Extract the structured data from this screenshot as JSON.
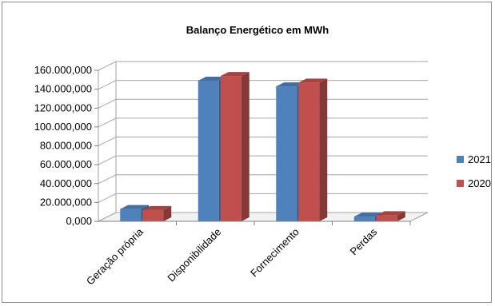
{
  "chart_data": {
    "type": "bar",
    "title": "Balanço Energético em MWh",
    "categories": [
      "Geração própria",
      "Disponibilidade",
      "Fornecimento",
      "Perdas"
    ],
    "series": [
      {
        "name": "2021",
        "values": [
          13000000,
          149000000,
          143000000,
          5000000
        ],
        "color": "#4F81BD"
      },
      {
        "name": "2020",
        "values": [
          12000000,
          154000000,
          147000000,
          6500000
        ],
        "color": "#C0504D"
      }
    ],
    "ylim": [
      0,
      160000000
    ],
    "yticks": [
      "0,000",
      "20.000,000",
      "40.000,000",
      "60.000,000",
      "80.000,000",
      "100.000,000",
      "120.000,000",
      "140.000,000",
      "160.000,000"
    ],
    "grid": true,
    "legend": "right"
  }
}
